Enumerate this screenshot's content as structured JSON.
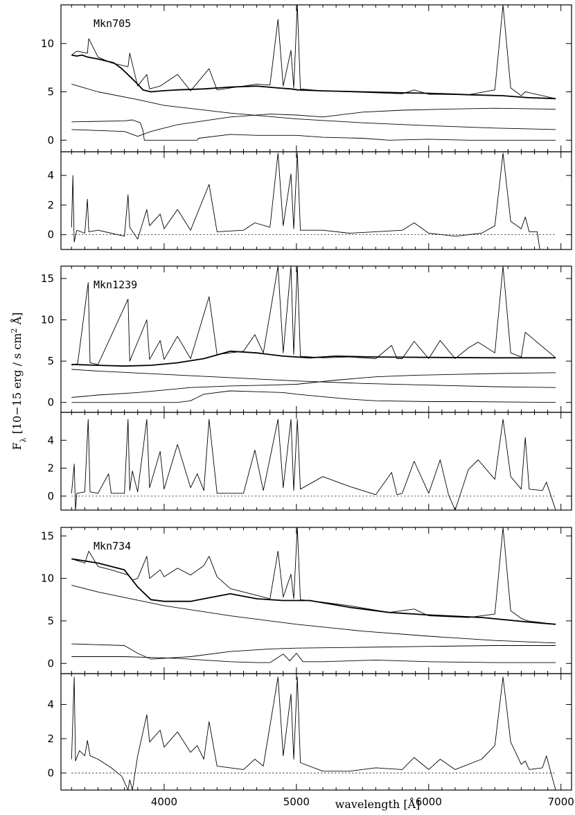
{
  "figure": {
    "x_axis_label": "wavelength [Å]",
    "y_axis_label": "F_λ [10−15 erg / s cm² Å]",
    "y_axis_label_parts": {
      "main": "F",
      "sub": "λ",
      "rest": " [10−15 erg / s cm",
      "sup": "2",
      "end": " Å]"
    },
    "x_ticks": [
      "4000",
      "5000",
      "6000",
      "7000"
    ]
  },
  "chart_data": [
    {
      "type": "line",
      "object": "Mkn705",
      "panel": "spectrum",
      "xlim": [
        3220,
        7080
      ],
      "ylim": [
        -1.2,
        14
      ],
      "yticks": [
        0,
        5,
        10
      ],
      "grid": false,
      "series": [
        {
          "x": [
            3300,
            3340,
            3380,
            3420,
            3460,
            3500,
            3560,
            3620,
            3680,
            3740,
            3800,
            3840,
            3900,
            3980,
            4100,
            4300,
            4500,
            4700,
            4860,
            4960,
            5010,
            5200,
            5500,
            5800,
            6000,
            6300,
            6562,
            6750,
            6960
          ],
          "y": [
            8.8,
            8.7,
            8.8,
            8.6,
            8.5,
            8.4,
            8.2,
            8.0,
            7.4,
            6.6,
            5.8,
            5.2,
            5.0,
            5.1,
            5.2,
            5.3,
            5.5,
            5.6,
            5.4,
            5.3,
            5.2,
            5.1,
            5.0,
            4.9,
            4.85,
            4.7,
            4.6,
            4.4,
            4.3
          ]
        },
        {
          "x": [
            3300,
            3340,
            3420,
            3430,
            3500,
            3600,
            3727,
            3740,
            3800,
            3869,
            3890,
            3970,
            4101,
            4200,
            4340,
            4400,
            4500,
            4700,
            4800,
            4861,
            4900,
            4959,
            4980,
            5007,
            5030,
            5200,
            5500,
            5800,
            5890,
            6000,
            6300,
            6500,
            6562,
            6620,
            6700,
            6730,
            6960
          ],
          "y": [
            8.8,
            9.2,
            9.0,
            10.5,
            8.6,
            8.0,
            7.6,
            9.0,
            5.6,
            6.8,
            5.3,
            5.6,
            6.8,
            5.1,
            7.4,
            5.2,
            5.4,
            5.8,
            5.7,
            12.5,
            5.6,
            9.3,
            5.4,
            14,
            5.3,
            5.1,
            4.95,
            4.8,
            5.2,
            4.75,
            4.7,
            5.2,
            14,
            5.4,
            4.6,
            5.0,
            4.3
          ]
        },
        {
          "x": [
            3300,
            3500,
            3800,
            4000,
            4500,
            5000,
            5500,
            6000,
            6500,
            6960
          ],
          "y": [
            5.8,
            5.0,
            4.2,
            3.6,
            2.8,
            2.2,
            1.8,
            1.5,
            1.25,
            1.1
          ]
        },
        {
          "x": [
            3300,
            3500,
            3700,
            3800,
            3900,
            4100,
            4500,
            4800,
            5000,
            5200,
            5500,
            5800,
            6100,
            6500,
            6960
          ],
          "y": [
            1.1,
            1.0,
            0.9,
            0.4,
            0.9,
            1.6,
            2.4,
            2.7,
            2.6,
            2.4,
            2.9,
            3.1,
            3.2,
            3.3,
            3.2
          ]
        },
        {
          "x": [
            3300,
            3700,
            3760,
            3820,
            3840,
            3850,
            4200,
            4250,
            4260,
            4500,
            4700,
            5000,
            5200,
            5500,
            5700,
            6000,
            6300,
            6960
          ],
          "y": [
            1.9,
            2.0,
            2.1,
            1.8,
            1.0,
            0,
            0,
            0,
            0.2,
            0.6,
            0.5,
            0.5,
            0.3,
            0.2,
            0,
            0.1,
            0,
            0
          ]
        }
      ]
    },
    {
      "type": "line",
      "object": "Mkn705",
      "panel": "residual",
      "xlim": [
        3220,
        7080
      ],
      "ylim": [
        -1.0,
        5.6
      ],
      "yticks": [
        0,
        2,
        4
      ],
      "grid": false,
      "series": [
        {
          "x": [
            3300,
            3310,
            3320,
            3340,
            3400,
            3420,
            3430,
            3500,
            3600,
            3700,
            3727,
            3740,
            3800,
            3869,
            3890,
            3970,
            4000,
            4101,
            4200,
            4340,
            4400,
            4600,
            4686,
            4800,
            4861,
            4900,
            4959,
            4980,
            5007,
            5030,
            5200,
            5400,
            5600,
            5800,
            5890,
            6000,
            6200,
            6400,
            6500,
            6562,
            6620,
            6700,
            6730,
            6760,
            6820,
            6840,
            6860,
            6960
          ],
          "y": [
            0.5,
            4.0,
            -0.5,
            0.3,
            0.1,
            2.4,
            0.2,
            0.3,
            0.1,
            -0.1,
            2.7,
            0.5,
            -0.3,
            1.7,
            0.6,
            1.4,
            0.4,
            1.7,
            0.3,
            3.4,
            0.2,
            0.3,
            0.8,
            0.5,
            5.5,
            0.6,
            4.1,
            0.4,
            5.5,
            0.3,
            0.3,
            0.1,
            0.2,
            0.3,
            0.8,
            0.1,
            -0.1,
            0.1,
            0.6,
            5.5,
            0.9,
            0.4,
            1.2,
            0.2,
            0.2,
            -1.0,
            -1.0,
            -1.0
          ]
        },
        {
          "x": [
            3300,
            6960
          ],
          "y": [
            0,
            0
          ]
        }
      ]
    },
    {
      "type": "line",
      "object": "Mkn1239",
      "panel": "spectrum",
      "xlim": [
        3220,
        7080
      ],
      "ylim": [
        -1.2,
        16.5
      ],
      "yticks": [
        0,
        5,
        10,
        15
      ],
      "grid": false,
      "series": [
        {
          "x": [
            3300,
            3500,
            3700,
            3900,
            4100,
            4300,
            4500,
            4700,
            4900,
            5100,
            5300,
            5600,
            6000,
            6500,
            6960
          ],
          "y": [
            4.6,
            4.5,
            4.4,
            4.5,
            4.8,
            5.3,
            6.2,
            6.0,
            5.6,
            5.4,
            5.6,
            5.5,
            5.45,
            5.4,
            5.4
          ]
        },
        {
          "x": [
            3300,
            3346,
            3426,
            3440,
            3500,
            3727,
            3740,
            3869,
            3890,
            3970,
            4000,
            4101,
            4200,
            4340,
            4400,
            4600,
            4686,
            4750,
            4861,
            4900,
            4959,
            4980,
            5007,
            5030,
            5200,
            5400,
            5600,
            5720,
            5760,
            5800,
            5890,
            6000,
            6087,
            6200,
            6300,
            6374,
            6500,
            6562,
            6620,
            6700,
            6730,
            6960
          ],
          "y": [
            4.5,
            4.7,
            14.5,
            4.8,
            4.6,
            12.5,
            5.0,
            10.0,
            5.2,
            7.5,
            5.2,
            8.0,
            5.3,
            12.8,
            5.8,
            6.2,
            8.2,
            6.0,
            16.5,
            6.0,
            16.5,
            5.8,
            16.5,
            5.6,
            5.4,
            5.5,
            5.3,
            6.9,
            5.3,
            5.3,
            7.4,
            5.3,
            7.5,
            5.3,
            6.6,
            7.3,
            6.0,
            16.5,
            6.0,
            5.5,
            8.5,
            5.4
          ]
        },
        {
          "x": [
            3300,
            3500,
            4000,
            4500,
            5000,
            5500,
            6000,
            6500,
            6960
          ],
          "y": [
            4.0,
            3.8,
            3.4,
            3.0,
            2.6,
            2.3,
            2.1,
            1.9,
            1.8
          ]
        },
        {
          "x": [
            3300,
            3500,
            3800,
            4000,
            4200,
            4500,
            4800,
            5000,
            5300,
            5600,
            5900,
            6200,
            6500,
            6960
          ],
          "y": [
            0.6,
            0.9,
            1.2,
            1.5,
            1.8,
            2.0,
            2.1,
            2.2,
            2.7,
            3.1,
            3.3,
            3.4,
            3.5,
            3.6
          ]
        },
        {
          "x": [
            3300,
            4100,
            4200,
            4250,
            4300,
            4500,
            4700,
            4900,
            5000,
            5200,
            5400,
            5600,
            6000,
            6300,
            6960
          ],
          "y": [
            0,
            0,
            0.2,
            0.6,
            1.0,
            1.4,
            1.3,
            1.2,
            1.0,
            0.7,
            0.4,
            0.2,
            0.1,
            0.1,
            0
          ]
        }
      ]
    },
    {
      "type": "line",
      "object": "Mkn1239",
      "panel": "residual",
      "xlim": [
        3220,
        7080
      ],
      "ylim": [
        -1.0,
        6.0
      ],
      "yticks": [
        0,
        2,
        4
      ],
      "grid": false,
      "series": [
        {
          "x": [
            3300,
            3320,
            3330,
            3340,
            3400,
            3426,
            3440,
            3500,
            3580,
            3600,
            3700,
            3727,
            3740,
            3760,
            3800,
            3869,
            3890,
            3970,
            4000,
            4101,
            4200,
            4250,
            4300,
            4340,
            4400,
            4600,
            4686,
            4750,
            4861,
            4900,
            4959,
            4980,
            5007,
            5030,
            5200,
            5400,
            5600,
            5720,
            5760,
            5800,
            5890,
            6000,
            6087,
            6150,
            6200,
            6300,
            6374,
            6500,
            6562,
            6620,
            6700,
            6730,
            6760,
            6860,
            6890,
            6960
          ],
          "y": [
            0.2,
            2.3,
            -1.0,
            0.2,
            0.3,
            5.5,
            0.3,
            0.2,
            1.6,
            0.2,
            0.2,
            5.5,
            0.4,
            1.8,
            0.3,
            5.5,
            0.6,
            3.2,
            0.5,
            3.7,
            0.6,
            1.6,
            0.4,
            5.5,
            0.2,
            0.2,
            3.3,
            0.4,
            5.5,
            0.6,
            5.5,
            0.4,
            5.5,
            0.5,
            1.4,
            0.7,
            0.1,
            1.7,
            0.1,
            0.2,
            2.5,
            0.2,
            2.6,
            0.1,
            -1.0,
            1.9,
            2.6,
            1.2,
            5.5,
            1.4,
            0.5,
            4.2,
            0.5,
            0.4,
            1.0,
            -1.0
          ]
        },
        {
          "x": [
            3300,
            6960
          ],
          "y": [
            0,
            0
          ]
        }
      ]
    },
    {
      "type": "line",
      "object": "Mkn734",
      "panel": "spectrum",
      "xlim": [
        3220,
        7080
      ],
      "ylim": [
        -1.2,
        16
      ],
      "yticks": [
        0,
        5,
        10,
        15
      ],
      "grid": false,
      "series": [
        {
          "x": [
            3300,
            3500,
            3700,
            3800,
            3900,
            4000,
            4200,
            4300,
            4500,
            4700,
            4900,
            5100,
            5400,
            5700,
            6000,
            6400,
            6800,
            6960
          ],
          "y": [
            12.3,
            11.8,
            11.0,
            9.0,
            7.5,
            7.3,
            7.3,
            7.6,
            8.2,
            7.6,
            7.4,
            7.4,
            6.6,
            6.0,
            5.7,
            5.4,
            4.8,
            4.6
          ]
        },
        {
          "x": [
            3300,
            3400,
            3430,
            3500,
            3600,
            3727,
            3760,
            3800,
            3869,
            3890,
            3970,
            4000,
            4101,
            4200,
            4300,
            4340,
            4400,
            4500,
            4700,
            4800,
            4861,
            4900,
            4959,
            4980,
            5007,
            5030,
            5200,
            5400,
            5700,
            5890,
            6000,
            6300,
            6500,
            6562,
            6620,
            6700,
            6750,
            6960
          ],
          "y": [
            12.3,
            11.8,
            13.2,
            11.4,
            11.0,
            10.4,
            9.8,
            10.0,
            12.6,
            10.0,
            11.0,
            10.2,
            11.2,
            10.4,
            11.5,
            12.6,
            10.2,
            8.8,
            8.0,
            7.6,
            13.2,
            7.8,
            10.5,
            7.6,
            16,
            7.5,
            7.2,
            6.8,
            6.0,
            6.4,
            5.6,
            5.4,
            5.8,
            16,
            6.2,
            5.3,
            5.0,
            4.6
          ]
        },
        {
          "x": [
            3300,
            3500,
            4000,
            4500,
            5000,
            5500,
            6000,
            6500,
            6960
          ],
          "y": [
            9.2,
            8.4,
            6.8,
            5.6,
            4.6,
            3.8,
            3.2,
            2.7,
            2.4
          ]
        },
        {
          "x": [
            3300,
            3700,
            3800,
            3900,
            4200,
            4500,
            4800,
            5000,
            5500,
            6000,
            6500,
            6960
          ],
          "y": [
            2.3,
            2.1,
            1.2,
            0.5,
            0.8,
            1.4,
            1.7,
            1.8,
            1.9,
            2.0,
            2.1,
            2.1
          ]
        },
        {
          "x": [
            3300,
            3700,
            3900,
            4100,
            4300,
            4500,
            4700,
            4800,
            4900,
            4950,
            5000,
            5050,
            5200,
            5600,
            6000,
            6500,
            6960
          ],
          "y": [
            0.8,
            0.8,
            0.7,
            0.6,
            0.4,
            0.2,
            0.1,
            0.1,
            1.1,
            0.3,
            1.2,
            0.2,
            0.2,
            0.4,
            0.2,
            0.1,
            0.1
          ]
        }
      ]
    },
    {
      "type": "line",
      "object": "Mkn734",
      "panel": "residual",
      "xlim": [
        3220,
        7080
      ],
      "ylim": [
        -1.0,
        5.8
      ],
      "yticks": [
        0,
        2,
        4
      ],
      "grid": false,
      "series": [
        {
          "x": [
            3300,
            3320,
            3330,
            3360,
            3400,
            3420,
            3440,
            3500,
            3600,
            3680,
            3727,
            3740,
            3760,
            3800,
            3869,
            3890,
            3970,
            4000,
            4101,
            4200,
            4250,
            4300,
            4340,
            4400,
            4600,
            4686,
            4750,
            4861,
            4900,
            4959,
            4980,
            5007,
            5030,
            5200,
            5400,
            5600,
            5800,
            5890,
            6000,
            6087,
            6200,
            6400,
            6500,
            6562,
            6620,
            6700,
            6730,
            6760,
            6860,
            6890,
            6960
          ],
          "y": [
            0.8,
            5.6,
            0.7,
            1.3,
            1.0,
            1.9,
            1.0,
            0.8,
            0.3,
            -0.2,
            -1.0,
            -0.4,
            -1.0,
            1.0,
            3.4,
            1.8,
            2.5,
            1.5,
            2.4,
            1.2,
            1.6,
            0.8,
            3.0,
            0.4,
            0.2,
            0.8,
            0.4,
            5.6,
            1.0,
            4.6,
            0.8,
            5.6,
            0.6,
            0.1,
            0.1,
            0.3,
            0.2,
            0.9,
            0.2,
            0.8,
            0.2,
            0.8,
            1.6,
            5.6,
            1.8,
            0.5,
            0.7,
            0.2,
            0.3,
            1.0,
            -1.0
          ]
        },
        {
          "x": [
            3300,
            6960
          ],
          "y": [
            0,
            0
          ]
        }
      ]
    }
  ]
}
